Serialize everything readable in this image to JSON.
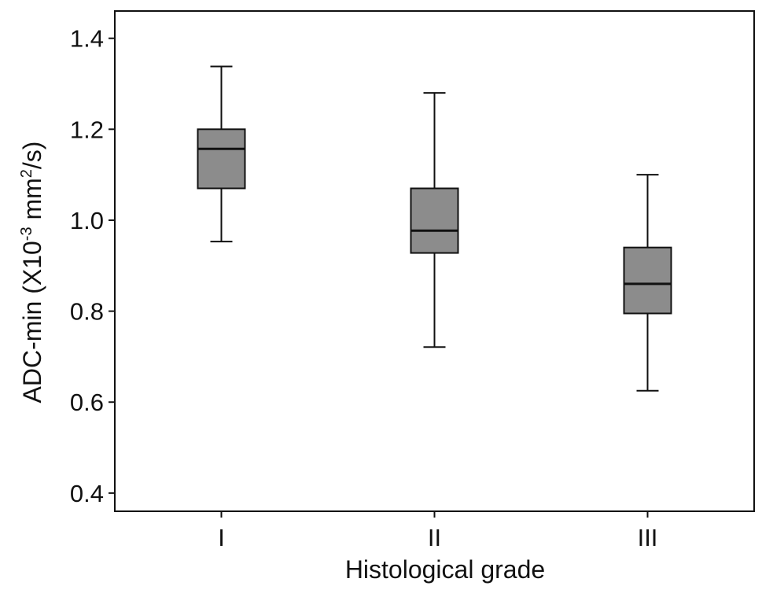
{
  "chart_data": {
    "type": "box",
    "title": "",
    "xlabel": "Histological grade",
    "ylabel": {
      "prefix": "ADC-min (X10",
      "exponent": "-3",
      "middle": " mm",
      "unit_exponent": "2",
      "suffix": "/s)"
    },
    "ylim": [
      0.36,
      1.46
    ],
    "yticks": [
      0.4,
      0.6,
      0.8,
      1.0,
      1.2,
      1.4
    ],
    "ytick_labels": [
      "0.4",
      "0.6",
      "0.8",
      "1.0",
      "1.2",
      "1.4"
    ],
    "categories": [
      "I",
      "II",
      "III"
    ],
    "boxes": [
      {
        "category": "I",
        "min": 0.953,
        "q1": 1.07,
        "median": 1.157,
        "q3": 1.2,
        "max": 1.338
      },
      {
        "category": "II",
        "min": 0.721,
        "q1": 0.928,
        "median": 0.977,
        "q3": 1.07,
        "max": 1.28
      },
      {
        "category": "III",
        "min": 0.625,
        "q1": 0.795,
        "median": 0.86,
        "q3": 0.94,
        "max": 1.1
      }
    ],
    "box_fill": "#8c8c8c",
    "line_color": "#111111",
    "grid": false
  }
}
